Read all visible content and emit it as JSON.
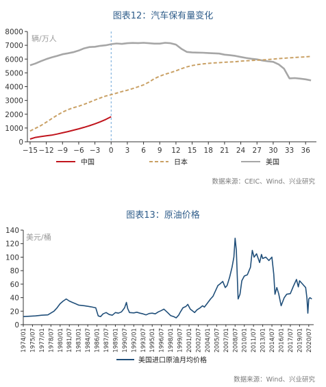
{
  "chart_data": [
    {
      "type": "line",
      "title": "图表12：汽车保有量变化",
      "unit_label": "辆/万人",
      "source": "数据来源：CEIC、Wind、兴业研究",
      "x_ticks": [
        -15,
        -12,
        -9,
        -6,
        -3,
        0,
        3,
        6,
        9,
        12,
        15,
        18,
        21,
        24,
        27,
        30,
        33,
        36
      ],
      "y_ticks": [
        0,
        1000,
        2000,
        3000,
        4000,
        5000,
        6000,
        7000,
        8000
      ],
      "xlim": [
        -15.5,
        38
      ],
      "ylim": [
        0,
        8000
      ],
      "reference_line_x": 0,
      "colors": {
        "中国": "#c0141c",
        "日本": "#c9a064",
        "美国": "#a6a6a6"
      },
      "series": [
        {
          "name": "中国",
          "style": "solid",
          "x": [
            -15,
            -14,
            -13,
            -12,
            -11,
            -10,
            -9,
            -8,
            -7,
            -6,
            -5,
            -4,
            -3,
            -2,
            -1,
            0
          ],
          "y": [
            200,
            320,
            380,
            430,
            480,
            560,
            650,
            740,
            840,
            940,
            1050,
            1170,
            1300,
            1450,
            1620,
            1820
          ]
        },
        {
          "name": "日本",
          "style": "dashed",
          "x": [
            -15,
            -14,
            -13,
            -12,
            -11,
            -10,
            -9,
            -8,
            -7,
            -6,
            -5,
            -4,
            -3,
            -2,
            -1,
            0,
            1,
            2,
            3,
            4,
            5,
            6,
            7,
            8,
            9,
            10,
            11,
            12,
            13,
            14,
            15,
            16,
            17,
            18,
            19,
            20,
            21,
            22,
            23,
            24,
            25,
            26,
            27,
            28,
            29,
            30,
            31,
            32,
            33,
            34,
            35,
            36,
            37
          ],
          "y": [
            780,
            980,
            1180,
            1420,
            1680,
            1930,
            2150,
            2330,
            2470,
            2580,
            2720,
            2870,
            3030,
            3180,
            3320,
            3420,
            3530,
            3640,
            3740,
            3860,
            3990,
            4130,
            4330,
            4580,
            4760,
            4900,
            5020,
            5150,
            5300,
            5430,
            5530,
            5600,
            5650,
            5690,
            5720,
            5740,
            5770,
            5790,
            5810,
            5850,
            5880,
            5900,
            5920,
            5940,
            5970,
            6000,
            6030,
            6060,
            6090,
            6110,
            6140,
            6160,
            6190
          ]
        },
        {
          "name": "美国",
          "style": "solid",
          "x": [
            -15,
            -14,
            -13,
            -12,
            -11,
            -10,
            -9,
            -8,
            -7,
            -6,
            -5,
            -4,
            -3,
            -2,
            -1,
            0,
            1,
            2,
            3,
            4,
            5,
            6,
            7,
            8,
            9,
            10,
            11,
            12,
            13,
            14,
            15,
            16,
            17,
            18,
            19,
            20,
            21,
            22,
            23,
            24,
            25,
            26,
            27,
            28,
            29,
            30,
            31,
            32,
            33,
            34,
            35,
            36,
            37
          ],
          "y": [
            5550,
            5680,
            5850,
            6000,
            6120,
            6230,
            6350,
            6420,
            6500,
            6620,
            6780,
            6870,
            6890,
            6960,
            7000,
            7080,
            7130,
            7100,
            7150,
            7170,
            7160,
            7180,
            7150,
            7120,
            7120,
            7180,
            7150,
            7050,
            6750,
            6520,
            6480,
            6470,
            6460,
            6440,
            6420,
            6400,
            6320,
            6280,
            6230,
            6150,
            6080,
            6020,
            5980,
            5900,
            5840,
            5800,
            5620,
            5300,
            4600,
            4620,
            4580,
            4530,
            4450
          ]
        }
      ]
    },
    {
      "type": "line",
      "title": "图表13：原油价格",
      "unit_label": "美元/桶",
      "source": "数据来源：Wind、兴业研究",
      "x_ticks": [
        "1974/01",
        "1975/07",
        "1977/01",
        "1978/07",
        "1980/01",
        "1981/07",
        "1983/01",
        "1984/07",
        "1986/01",
        "1987/07",
        "1989/01",
        "1990/07",
        "1992/01",
        "1993/07",
        "1995/01",
        "1996/07",
        "1998/01",
        "1999/07",
        "2001/01",
        "2002/07",
        "2004/01",
        "2005/07",
        "2007/01",
        "2008/07",
        "2010/01",
        "2011/07",
        "2013/01",
        "2014/07",
        "2016/01",
        "2017/07",
        "2019/01",
        "2020/07"
      ],
      "y_ticks": [
        0,
        20,
        40,
        60,
        80,
        100,
        120,
        140
      ],
      "xlim": [
        1974.0,
        2021.3
      ],
      "ylim": [
        0,
        140
      ],
      "colors": {
        "美国进口原油月均价格": "#1f4e79"
      },
      "series": [
        {
          "name": "美国进口原油月均价格",
          "x": [
            1974.0,
            1975.0,
            1976.0,
            1977.0,
            1978.0,
            1979.0,
            1979.5,
            1980.0,
            1980.5,
            1981.0,
            1981.5,
            1982.0,
            1982.5,
            1983.0,
            1983.5,
            1984.0,
            1985.0,
            1985.8,
            1986.2,
            1986.6,
            1987.0,
            1987.5,
            1988.0,
            1988.5,
            1989.0,
            1989.5,
            1990.0,
            1990.5,
            1990.8,
            1991.0,
            1991.3,
            1992.0,
            1992.5,
            1993.0,
            1993.5,
            1994.0,
            1994.5,
            1995.0,
            1995.5,
            1996.0,
            1996.5,
            1996.9,
            1997.5,
            1998.0,
            1998.5,
            1998.9,
            1999.3,
            1999.6,
            2000.0,
            2000.5,
            2000.8,
            2001.2,
            2001.9,
            2002.3,
            2002.8,
            2003.2,
            2003.5,
            2004.0,
            2004.5,
            2004.9,
            2005.3,
            2005.7,
            2006.0,
            2006.5,
            2006.9,
            2007.2,
            2007.6,
            2008.0,
            2008.3,
            2008.5,
            2008.7,
            2008.9,
            2009.0,
            2009.3,
            2009.6,
            2010.0,
            2010.5,
            2011.0,
            2011.3,
            2011.6,
            2012.0,
            2012.5,
            2012.8,
            2013.0,
            2013.5,
            2014.0,
            2014.5,
            2014.8,
            2015.0,
            2015.3,
            2015.6,
            2016.0,
            2016.5,
            2016.9,
            2017.5,
            2018.0,
            2018.5,
            2018.8,
            2019.0,
            2019.5,
            2020.0,
            2020.2,
            2020.35,
            2020.5,
            2020.7,
            2021.0
          ],
          "y": [
            12,
            12.5,
            13,
            14,
            14.5,
            20,
            25,
            31,
            35,
            38,
            35,
            33,
            31,
            29,
            28.5,
            28,
            26.5,
            25,
            13,
            12,
            16,
            18,
            15,
            14,
            18,
            17,
            19,
            25,
            33,
            24,
            18,
            17.5,
            18.5,
            17,
            16,
            14.5,
            16.5,
            17,
            16,
            19,
            21,
            23,
            18,
            13.5,
            12,
            10,
            14,
            19,
            25,
            27,
            30,
            23,
            18,
            22,
            25,
            28,
            26,
            32,
            38,
            42,
            50,
            58,
            60,
            64,
            55,
            58,
            70,
            85,
            100,
            128,
            110,
            62,
            38,
            45,
            65,
            72,
            74,
            85,
            110,
            100,
            105,
            92,
            104,
            98,
            100,
            95,
            100,
            75,
            45,
            55,
            46,
            28,
            40,
            45,
            46,
            57,
            67,
            56,
            65,
            60,
            55,
            40,
            17,
            38,
            40,
            38
          ]
        }
      ]
    }
  ]
}
